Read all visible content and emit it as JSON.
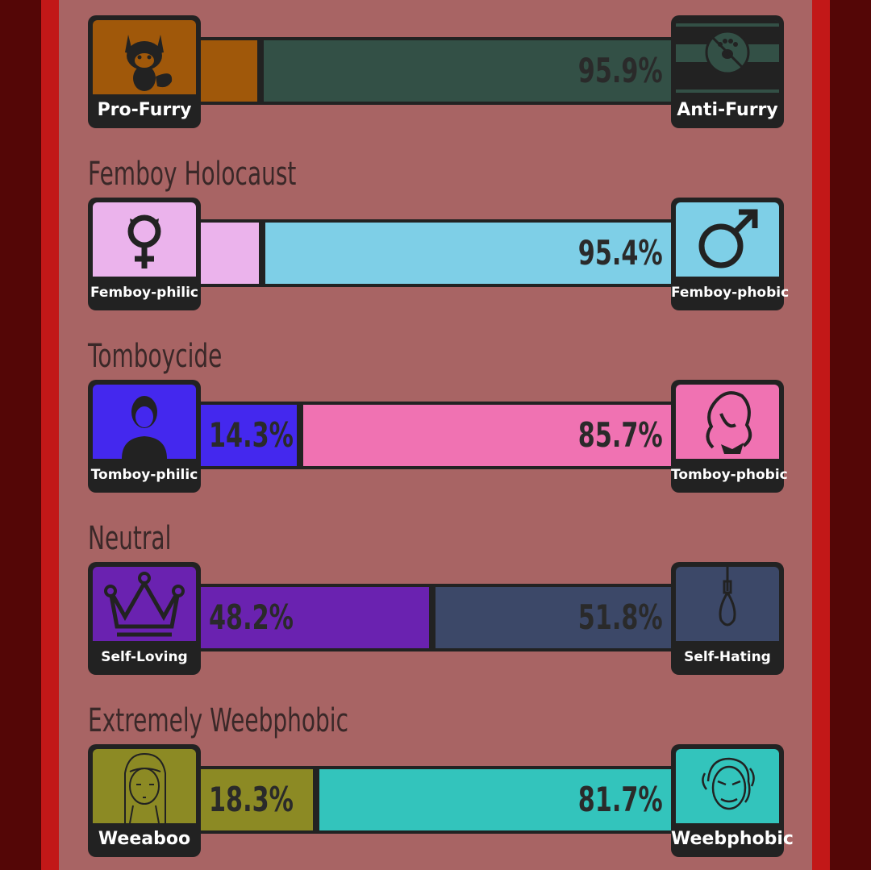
{
  "rows": [
    {
      "title": "",
      "left_label": "Pro-Furry",
      "right_label": "Anti-Furry",
      "left_pct": 4.1,
      "right_pct": 95.9,
      "left_text": "",
      "right_text": "95.9%",
      "left_color": "#a0580a",
      "right_color": "#335046",
      "left_icon": "fox-icon",
      "right_icon": "no-paw-icon"
    },
    {
      "title": "Femboy Holocaust",
      "left_label": "Femboy-philic",
      "right_label": "Femboy-phobic",
      "left_pct": 4.6,
      "right_pct": 95.4,
      "left_text": "",
      "right_text": "95.4%",
      "left_color": "#ebb3ec",
      "right_color": "#7ecfe7",
      "left_icon": "cat-venus-icon",
      "right_icon": "mars-icon"
    },
    {
      "title": "Tomboycide",
      "left_label": "Tomboy-philic",
      "right_label": "Tomboy-phobic",
      "left_pct": 14.3,
      "right_pct": 85.7,
      "left_text": "14.3%",
      "right_text": "85.7%",
      "left_color": "#4428ee",
      "right_color": "#f072b2",
      "left_icon": "short-hair-person-icon",
      "right_icon": "long-hair-woman-icon"
    },
    {
      "title": "Neutral",
      "left_label": "Self-Loving",
      "right_label": "Self-Hating",
      "left_pct": 48.2,
      "right_pct": 51.8,
      "left_text": "48.2%",
      "right_text": "51.8%",
      "left_color": "#6a22b0",
      "right_color": "#3c4868",
      "left_icon": "crown-icon",
      "right_icon": "noose-icon"
    },
    {
      "title": "Extremely Weebphobic",
      "left_label": "Weeaboo",
      "right_label": "Weebphobic",
      "left_pct": 18.3,
      "right_pct": 81.7,
      "left_text": "18.3%",
      "right_text": "81.7%",
      "left_color": "#8c8a24",
      "right_color": "#33c4bc",
      "left_icon": "anime-girl-icon",
      "right_icon": "angry-face-icon"
    }
  ]
}
